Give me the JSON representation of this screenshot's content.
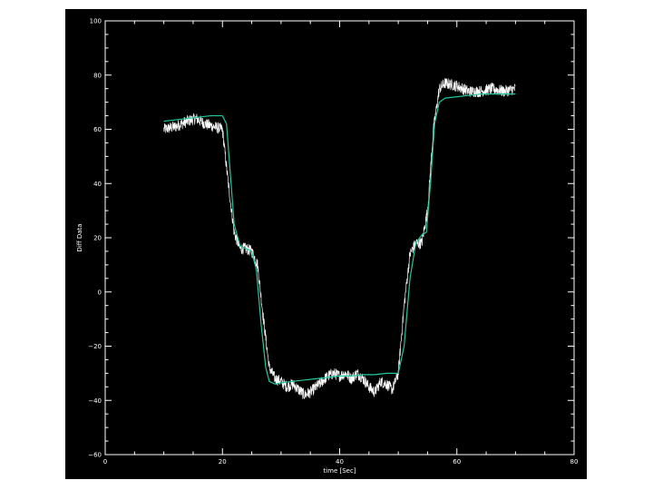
{
  "chart_data": {
    "type": "line",
    "title": "",
    "xlabel": "time [Sec]",
    "ylabel": "Diff Data",
    "xlim": [
      0,
      80
    ],
    "ylim": [
      -60,
      100
    ],
    "x_ticks": [
      0,
      20,
      40,
      60,
      80
    ],
    "y_ticks": [
      -60,
      -40,
      -20,
      0,
      20,
      40,
      60,
      80,
      100
    ],
    "x_tick_labels": [
      "0",
      "20",
      "40",
      "60",
      "80"
    ],
    "y_tick_labels": [
      "−60",
      "−40",
      "−20",
      "0",
      "20",
      "40",
      "60",
      "80",
      "100"
    ],
    "grid": false,
    "series": [
      {
        "color": "#ffffff",
        "style": "noisy",
        "x": [
          10,
          12,
          14,
          15.5,
          17,
          18.5,
          20,
          21,
          22,
          23,
          24,
          25,
          26,
          27,
          28,
          29,
          30,
          31,
          32,
          33,
          34,
          35,
          36,
          37,
          38,
          39,
          40,
          41,
          42,
          43,
          44,
          45,
          46,
          47,
          48,
          49,
          50,
          51,
          52,
          53,
          54,
          55,
          56,
          57,
          58,
          60,
          62,
          64,
          66,
          68,
          70
        ],
        "y": [
          60,
          61,
          63,
          64,
          62,
          61,
          60,
          40,
          22,
          16,
          16,
          15,
          10,
          -10,
          -28,
          -32,
          -33,
          -35,
          -34,
          -36,
          -38,
          -37,
          -35,
          -33,
          -31,
          -30,
          -31,
          -30,
          -32,
          -30,
          -32,
          -35,
          -37,
          -33,
          -34,
          -36,
          -30,
          -5,
          14,
          18,
          18,
          30,
          60,
          75,
          77,
          76,
          74,
          74,
          75,
          74,
          75
        ]
      },
      {
        "color": "#1fc8a0",
        "style": "smooth",
        "x": [
          10,
          12,
          14,
          16,
          18,
          20,
          20.7,
          21.3,
          22,
          23,
          24,
          25,
          25.8,
          26.6,
          27.4,
          28,
          29,
          30,
          32,
          34,
          36,
          38,
          40,
          42,
          44,
          46,
          48,
          50,
          51,
          52,
          53,
          54,
          54.8,
          55.5,
          56.2,
          57,
          58,
          60,
          62,
          64,
          66,
          68,
          70
        ],
        "y": [
          63,
          63.5,
          64,
          64.5,
          65,
          65,
          62,
          45,
          25,
          17,
          16,
          15,
          8,
          -12,
          -28,
          -33,
          -34,
          -33.5,
          -33,
          -32.5,
          -32,
          -31.5,
          -31,
          -31,
          -30.5,
          -30.5,
          -30,
          -30,
          -20,
          5,
          18,
          21,
          22,
          40,
          62,
          70,
          71.5,
          72,
          72.5,
          73,
          73,
          73,
          73
        ]
      }
    ]
  }
}
